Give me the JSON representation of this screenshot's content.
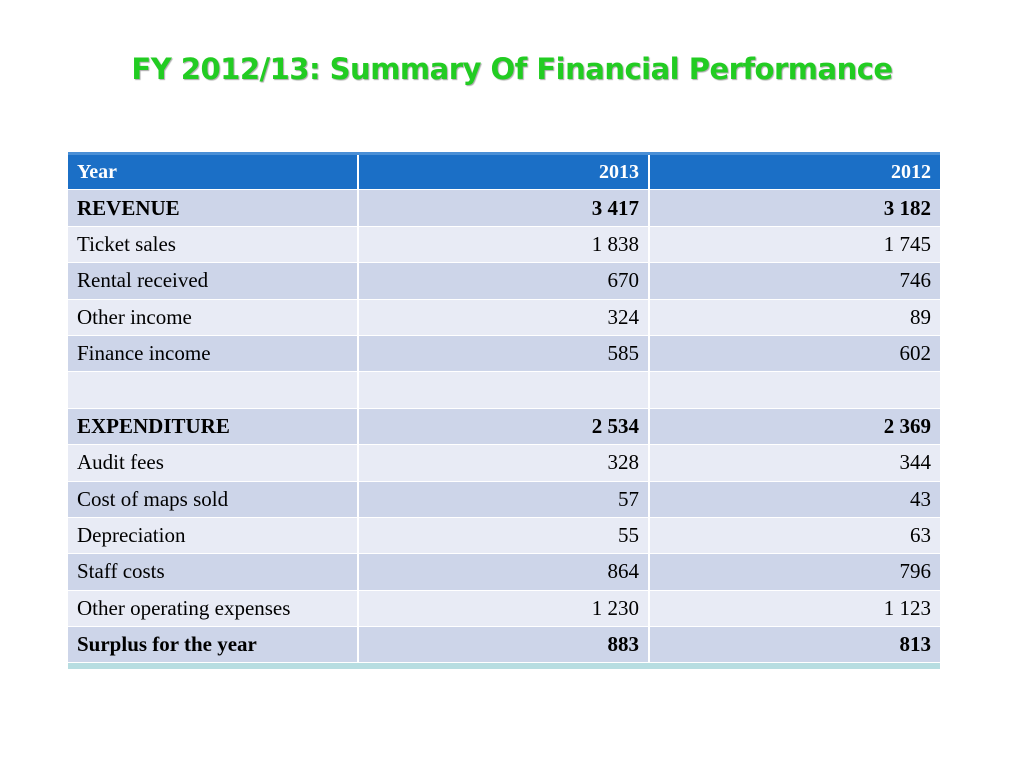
{
  "title": "FY 2012/13: Summary Of Financial Performance",
  "table": {
    "headers": [
      "Year",
      "2013",
      "2012"
    ],
    "rows": [
      {
        "label": "REVENUE",
        "v2013": "3 417",
        "v2012": "3 182",
        "bold": true
      },
      {
        "label": "Ticket sales",
        "v2013": "1 838",
        "v2012": "1 745",
        "bold": false
      },
      {
        "label": "Rental received",
        "v2013": "670",
        "v2012": "746",
        "bold": false
      },
      {
        "label": "Other income",
        "v2013": "324",
        "v2012": "89",
        "bold": false
      },
      {
        "label": "Finance income",
        "v2013": "585",
        "v2012": "602",
        "bold": false
      },
      {
        "label": "",
        "v2013": "",
        "v2012": "",
        "bold": false
      },
      {
        "label": "EXPENDITURE",
        "v2013": "2 534",
        "v2012": "2 369",
        "bold": true
      },
      {
        "label": "Audit fees",
        "v2013": "328",
        "v2012": "344",
        "bold": false
      },
      {
        "label": "Cost of maps sold",
        "v2013": "57",
        "v2012": "43",
        "bold": false
      },
      {
        "label": "Depreciation",
        "v2013": "55",
        "v2012": "63",
        "bold": false
      },
      {
        "label": "Staff costs",
        "v2013": "864",
        "v2012": "796",
        "bold": false
      },
      {
        "label": "Other operating expenses",
        "v2013": "1 230",
        "v2012": "1 123",
        "bold": false
      },
      {
        "label": "Surplus for the year",
        "v2013": "883",
        "v2012": "813",
        "bold": true
      }
    ]
  },
  "colors": {
    "title": "#22cc22",
    "header_bg": "#1b6fc6",
    "row_dark": "#cdd5e9",
    "row_light": "#e8ebf5"
  }
}
